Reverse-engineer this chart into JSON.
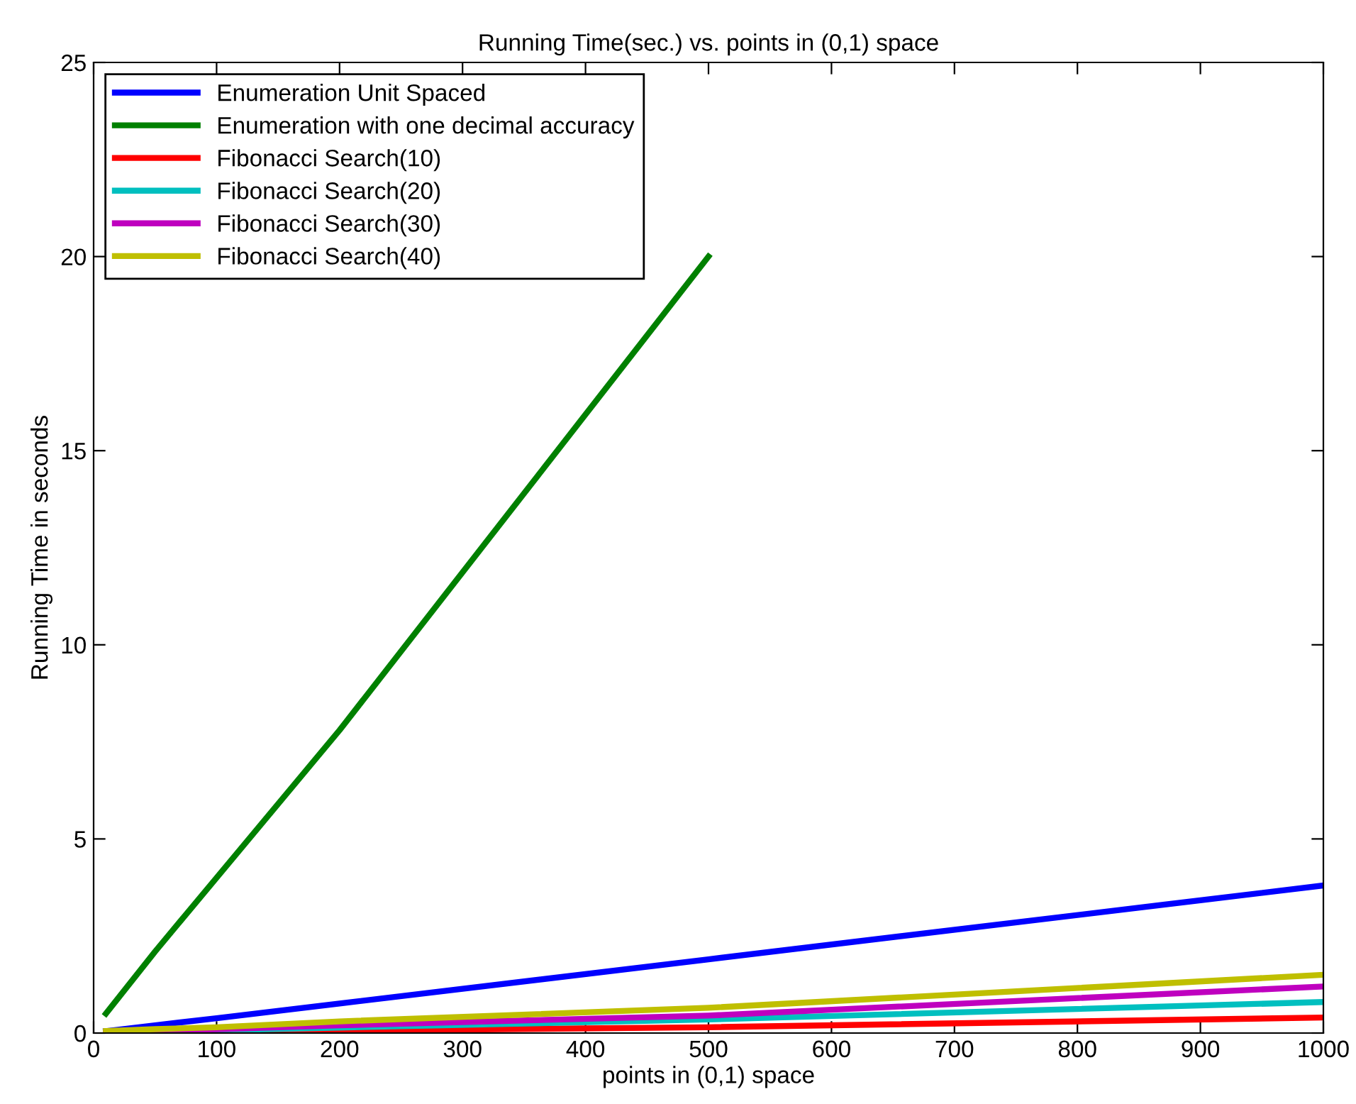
{
  "chart_data": {
    "type": "line",
    "title": "Running Time(sec.) vs. points in (0,1) space",
    "xlabel": "points in (0,1) space",
    "ylabel": "Running Time in seconds",
    "x": [
      10,
      50,
      100,
      200,
      500,
      1000
    ],
    "series": [
      {
        "name": "Enumeration Unit Spaced",
        "color": "#0000ff",
        "values": [
          0.05,
          0.2,
          0.38,
          0.76,
          1.9,
          3.8
        ]
      },
      {
        "name": "Enumeration with one decimal accuracy",
        "color": "#008000",
        "values": [
          0.5,
          2.1,
          4.0,
          7.8,
          20,
          null
        ]
      },
      {
        "name": "Fibonacci Search(10)",
        "color": "#ff0000",
        "values": [
          null,
          null,
          0.03,
          0.06,
          0.15,
          0.4
        ]
      },
      {
        "name": "Fibonacci Search(20)",
        "color": "#00bfbf",
        "values": [
          0.01,
          0.04,
          0.07,
          0.14,
          0.35,
          0.8
        ]
      },
      {
        "name": "Fibonacci Search(30)",
        "color": "#bf00bf",
        "values": [
          0.02,
          0.06,
          0.1,
          0.2,
          0.45,
          1.2
        ]
      },
      {
        "name": "Fibonacci Search(40)",
        "color": "#bfbf00",
        "values": [
          0.05,
          0.1,
          0.15,
          0.3,
          0.65,
          1.5
        ]
      }
    ],
    "xlim": [
      0,
      1000
    ],
    "xticks": [
      0,
      100,
      200,
      300,
      400,
      500,
      600,
      700,
      800,
      900,
      1000
    ],
    "ylim": [
      0,
      25
    ],
    "yticks": [
      0,
      5,
      10,
      15,
      20,
      25
    ],
    "legend": "top left",
    "grid": false
  }
}
